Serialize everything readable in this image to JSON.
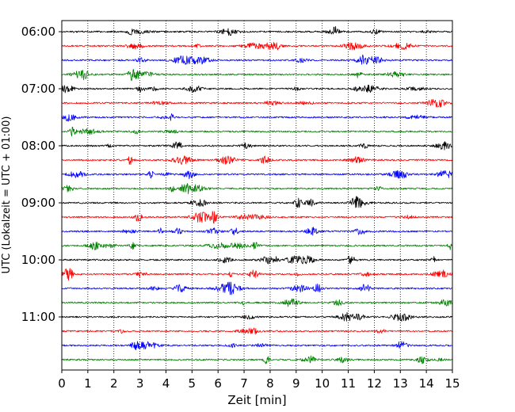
{
  "chart_data": {
    "type": "line",
    "title": "",
    "xlabel": "Zeit  [min]",
    "ylabel": "UTC (Lokalzeit = UTC + 01:00)",
    "xlim": [
      0,
      15
    ],
    "x_ticks": [
      "0",
      "1",
      "2",
      "3",
      "4",
      "5",
      "6",
      "7",
      "8",
      "9",
      "10",
      "11",
      "12",
      "13",
      "14",
      "15"
    ],
    "y_ticks": [
      "06:00",
      "07:00",
      "08:00",
      "09:00",
      "10:00",
      "11:00"
    ],
    "grid": "vertical dotted lines at each minute",
    "legend": "none",
    "trace_color_cycle": [
      "#000000",
      "#ff0000",
      "#0000ff",
      "#008000"
    ],
    "series": [
      {
        "start": "06:00",
        "color": "#000000"
      },
      {
        "start": "06:15",
        "color": "#ff0000"
      },
      {
        "start": "06:30",
        "color": "#0000ff"
      },
      {
        "start": "06:45",
        "color": "#008000"
      },
      {
        "start": "07:00",
        "color": "#000000"
      },
      {
        "start": "07:15",
        "color": "#ff0000"
      },
      {
        "start": "07:30",
        "color": "#0000ff"
      },
      {
        "start": "07:45",
        "color": "#008000"
      },
      {
        "start": "08:00",
        "color": "#000000"
      },
      {
        "start": "08:15",
        "color": "#ff0000"
      },
      {
        "start": "08:30",
        "color": "#0000ff"
      },
      {
        "start": "08:45",
        "color": "#008000"
      },
      {
        "start": "09:00",
        "color": "#000000"
      },
      {
        "start": "09:15",
        "color": "#ff0000"
      },
      {
        "start": "09:30",
        "color": "#0000ff"
      },
      {
        "start": "09:45",
        "color": "#008000"
      },
      {
        "start": "10:00",
        "color": "#000000"
      },
      {
        "start": "10:15",
        "color": "#ff0000"
      },
      {
        "start": "10:30",
        "color": "#0000ff"
      },
      {
        "start": "10:45",
        "color": "#008000"
      },
      {
        "start": "11:00",
        "color": "#000000"
      },
      {
        "start": "11:15",
        "color": "#ff0000"
      },
      {
        "start": "11:30",
        "color": "#0000ff"
      },
      {
        "start": "11:45",
        "color": "#008000"
      }
    ]
  }
}
